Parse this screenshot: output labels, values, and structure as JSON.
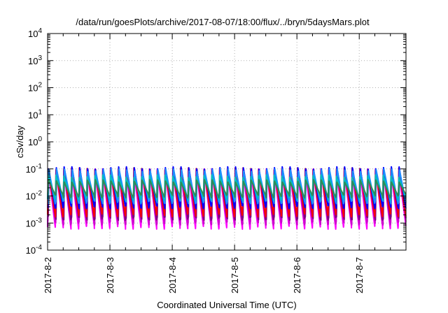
{
  "chart_data": {
    "type": "line",
    "title": "/data/run/goesPlots/archive/2017-08-07/18:00/flux/../bryn/5daysMars.plot",
    "xlabel": "Coordinated Universal Time (UTC)",
    "ylabel": "cSv/day",
    "yscale": "log",
    "ylim": [
      0.0001,
      10000
    ],
    "xlim": [
      "2017-08-02 00:00",
      "2017-08-07 18:00"
    ],
    "x_tick_labels": [
      "2017-8-2",
      "2017-8-3",
      "2017-8-4",
      "2017-8-5",
      "2017-8-6",
      "2017-8-7"
    ],
    "y_ticks": [
      {
        "value": 0.0001,
        "base": "10",
        "exp": "-4"
      },
      {
        "value": 0.001,
        "base": "10",
        "exp": "-3"
      },
      {
        "value": 0.01,
        "base": "10",
        "exp": "-2"
      },
      {
        "value": 0.1,
        "base": "10",
        "exp": "-1"
      },
      {
        "value": 1,
        "base": "10",
        "exp": "0"
      },
      {
        "value": 10,
        "base": "10",
        "exp": "1"
      },
      {
        "value": 100,
        "base": "10",
        "exp": "2"
      },
      {
        "value": 1000,
        "base": "10",
        "exp": "3"
      },
      {
        "value": 10000,
        "base": "10",
        "exp": "4"
      }
    ],
    "grid": true,
    "legend": "none",
    "pattern": {
      "description_period_hours": 3,
      "note": "Repeating sawtooth oscillation: sharp rise then decay each cycle"
    },
    "series": [
      {
        "color": "#ff00ff",
        "peak": 0.1,
        "trough": 0.0007
      },
      {
        "color": "#cc00cc",
        "peak": 0.1,
        "trough": 0.001
      },
      {
        "color": "#800080",
        "peak": 0.1,
        "trough": 0.0015
      },
      {
        "color": "#ff0000",
        "peak": 0.11,
        "trough": 0.002
      },
      {
        "color": "#0000ff",
        "peak": 0.12,
        "trough": 0.004
      },
      {
        "color": "#1e90ff",
        "peak": 0.1,
        "trough": 0.006
      },
      {
        "color": "#00c0c0",
        "peak": 0.06,
        "trough": 0.008
      },
      {
        "color": "#2e8b57",
        "peak": 0.04,
        "trough": 0.01
      }
    ]
  }
}
